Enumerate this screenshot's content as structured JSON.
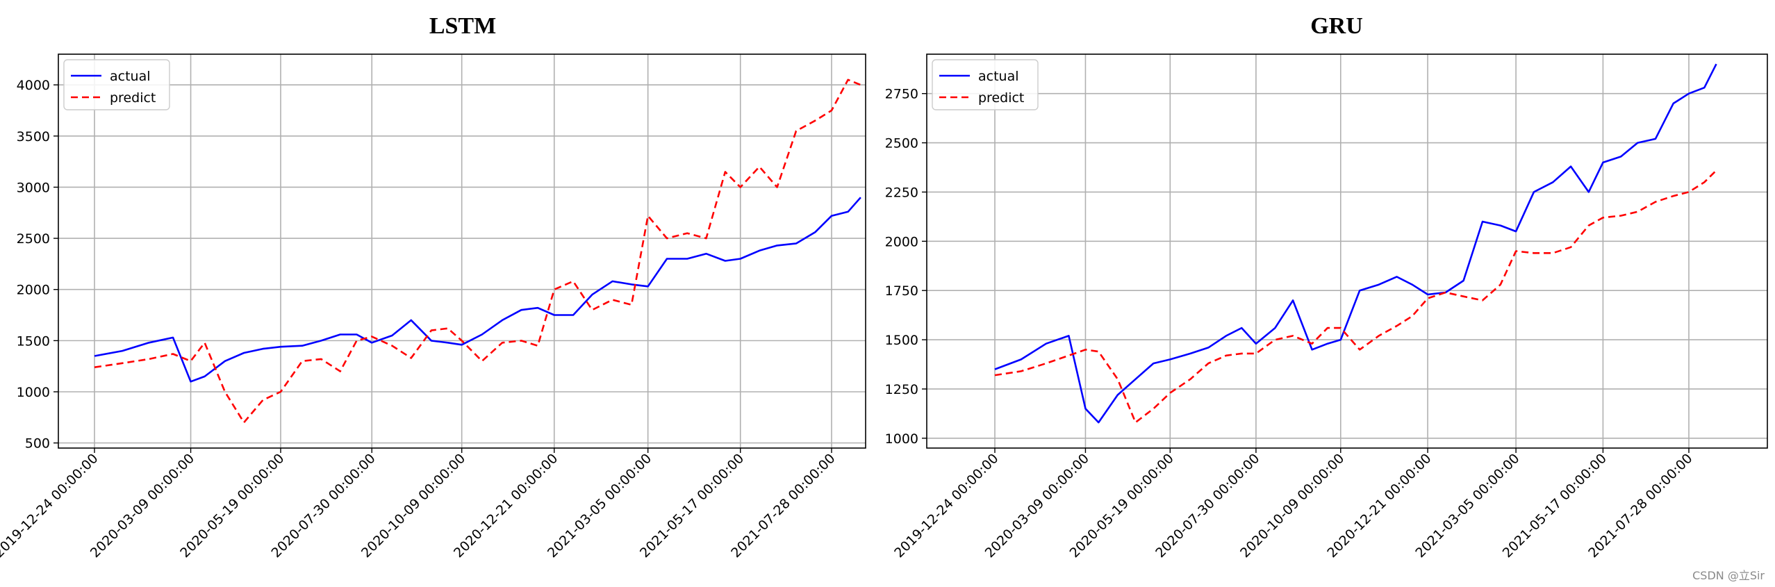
{
  "watermark": "CSDN @立Sir",
  "chart_data": [
    {
      "type": "line",
      "title": "LSTM",
      "xlabel": "",
      "ylabel": "",
      "x_tick_labels": [
        "2019-12-24 00:00:00",
        "2020-03-09 00:00:00",
        "2020-05-19 00:00:00",
        "2020-07-30 00:00:00",
        "2020-10-09 00:00:00",
        "2020-12-21 00:00:00",
        "2021-03-05 00:00:00",
        "2021-05-17 00:00:00",
        "2021-07-28 00:00:00"
      ],
      "x": [
        "2019-12-24",
        "2020-01-15",
        "2020-02-05",
        "2020-02-24",
        "2020-03-09",
        "2020-03-20",
        "2020-04-05",
        "2020-04-20",
        "2020-05-05",
        "2020-05-19",
        "2020-06-05",
        "2020-06-20",
        "2020-07-05",
        "2020-07-18",
        "2020-07-30",
        "2020-08-15",
        "2020-08-30",
        "2020-09-15",
        "2020-09-28",
        "2020-10-09",
        "2020-10-25",
        "2020-11-10",
        "2020-11-25",
        "2020-12-08",
        "2020-12-21",
        "2021-01-05",
        "2021-01-20",
        "2021-02-05",
        "2021-02-20",
        "2021-03-05",
        "2021-03-20",
        "2021-04-05",
        "2021-04-20",
        "2021-05-05",
        "2021-05-17",
        "2021-06-01",
        "2021-06-15",
        "2021-06-30",
        "2021-07-15",
        "2021-07-28",
        "2021-08-10",
        "2021-08-20"
      ],
      "y_ticks": [
        500,
        1000,
        1500,
        2000,
        2500,
        3000,
        3500,
        4000
      ],
      "ylim": [
        450,
        4300
      ],
      "grid": true,
      "legend_position": "top-left",
      "series": [
        {
          "name": "actual",
          "color": "#0000ff",
          "style": "solid",
          "values": [
            1350,
            1400,
            1480,
            1530,
            1100,
            1150,
            1300,
            1380,
            1420,
            1440,
            1450,
            1500,
            1560,
            1560,
            1480,
            1550,
            1700,
            1500,
            1480,
            1460,
            1560,
            1700,
            1800,
            1820,
            1750,
            1750,
            1950,
            2080,
            2050,
            2030,
            2300,
            2300,
            2350,
            2280,
            2300,
            2380,
            2430,
            2450,
            2560,
            2720,
            2760,
            2900
          ]
        },
        {
          "name": "predict",
          "color": "#ff0000",
          "style": "dashed",
          "values": [
            1240,
            1280,
            1320,
            1370,
            1300,
            1480,
            1000,
            700,
            920,
            1000,
            1300,
            1320,
            1200,
            1500,
            1540,
            1450,
            1330,
            1600,
            1620,
            1500,
            1300,
            1480,
            1500,
            1450,
            2000,
            2080,
            1800,
            1900,
            1850,
            2720,
            2500,
            2550,
            2500,
            3150,
            3000,
            3200,
            3000,
            3550,
            3650,
            3750,
            4050,
            4000
          ]
        }
      ]
    },
    {
      "type": "line",
      "title": "GRU",
      "xlabel": "",
      "ylabel": "",
      "x_tick_labels": [
        "2019-12-24 00:00:00",
        "2020-03-09 00:00:00",
        "2020-05-19 00:00:00",
        "2020-07-30 00:00:00",
        "2020-10-09 00:00:00",
        "2020-12-21 00:00:00",
        "2021-03-05 00:00:00",
        "2021-05-17 00:00:00",
        "2021-07-28 00:00:00"
      ],
      "x": [
        "2019-12-24",
        "2020-01-15",
        "2020-02-05",
        "2020-02-24",
        "2020-03-09",
        "2020-03-20",
        "2020-04-05",
        "2020-04-20",
        "2020-05-05",
        "2020-05-19",
        "2020-06-05",
        "2020-06-20",
        "2020-07-05",
        "2020-07-18",
        "2020-07-30",
        "2020-08-15",
        "2020-08-30",
        "2020-09-15",
        "2020-09-28",
        "2020-10-09",
        "2020-10-25",
        "2020-11-10",
        "2020-11-25",
        "2020-12-08",
        "2020-12-21",
        "2021-01-05",
        "2021-01-20",
        "2021-02-05",
        "2021-02-20",
        "2021-03-05",
        "2021-03-20",
        "2021-04-05",
        "2021-04-20",
        "2021-05-05",
        "2021-05-17",
        "2021-06-01",
        "2021-06-15",
        "2021-06-30",
        "2021-07-15",
        "2021-07-28",
        "2021-08-10",
        "2021-08-20"
      ],
      "y_ticks": [
        1000,
        1250,
        1500,
        1750,
        2000,
        2250,
        2500,
        2750
      ],
      "ylim": [
        950,
        2950
      ],
      "grid": true,
      "legend_position": "top-left",
      "series": [
        {
          "name": "actual",
          "color": "#0000ff",
          "style": "solid",
          "values": [
            1350,
            1400,
            1480,
            1520,
            1150,
            1080,
            1220,
            1300,
            1380,
            1400,
            1430,
            1460,
            1520,
            1560,
            1480,
            1560,
            1700,
            1450,
            1480,
            1500,
            1750,
            1780,
            1820,
            1780,
            1730,
            1740,
            1800,
            2100,
            2080,
            2050,
            2250,
            2300,
            2380,
            2250,
            2400,
            2430,
            2500,
            2520,
            2700,
            2750,
            2780,
            2900
          ]
        },
        {
          "name": "predict",
          "color": "#ff0000",
          "style": "dashed",
          "values": [
            1320,
            1340,
            1380,
            1420,
            1450,
            1440,
            1300,
            1080,
            1150,
            1230,
            1300,
            1380,
            1420,
            1430,
            1430,
            1500,
            1520,
            1480,
            1560,
            1560,
            1450,
            1520,
            1570,
            1620,
            1710,
            1740,
            1720,
            1700,
            1780,
            1950,
            1940,
            1940,
            1970,
            2080,
            2120,
            2130,
            2150,
            2200,
            2230,
            2250,
            2300,
            2360
          ]
        }
      ]
    }
  ]
}
